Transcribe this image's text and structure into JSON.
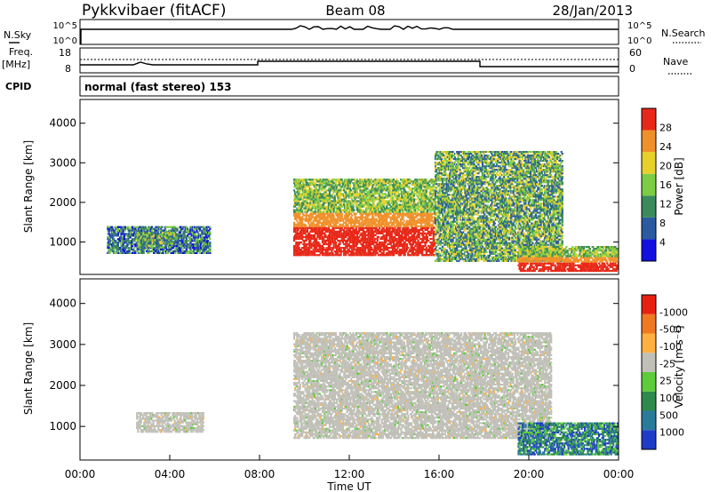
{
  "header": {
    "radar": "Pykkvibaer (fitACF)",
    "beam": "Beam 08",
    "date": "28/Jan/2013"
  },
  "ctrl": {
    "nsky_label": "N.Sky",
    "nsky_ticks": [
      "10^5",
      "10^0"
    ],
    "nsearch_label": "N.Search",
    "nsearch_ticks": [
      "10^5",
      "10^0"
    ],
    "freq_label": "Freq.",
    "freq_unit": "[MHz]",
    "freq_ticks": [
      "18",
      "8"
    ],
    "nave_label": "Nave",
    "nave_ticks": [
      "60",
      "0"
    ],
    "cpid_label": "CPID",
    "cpid_text": "normal (fast stereo) 153"
  },
  "chart_data": [
    {
      "type": "heatmap",
      "name": "power",
      "ylabel": "Slant Range [km]",
      "yticks": [
        1000,
        2000,
        3000,
        4000
      ],
      "ylim": [
        180,
        4600
      ],
      "colorbar_label": "Power [dB]",
      "colorbar_ticks": [
        "4",
        "8",
        "12",
        "16",
        "20",
        "24",
        "28"
      ],
      "colorbar_colors": [
        "#1010e0",
        "#2c5aa0",
        "#3a8a5c",
        "#7ccc44",
        "#e8d02a",
        "#f0902a",
        "#e82818"
      ],
      "regions": [
        {
          "t": [
            1.2,
            5.8
          ],
          "r": [
            700,
            1400
          ],
          "level": "low-mid"
        },
        {
          "t": [
            2.5,
            4.2
          ],
          "r": [
            850,
            1250
          ],
          "level": "mid"
        },
        {
          "t": [
            9.5,
            15.8
          ],
          "r": [
            650,
            2600
          ],
          "level": "high"
        },
        {
          "t": [
            15.8,
            21.5
          ],
          "r": [
            500,
            3300
          ],
          "level": "mid"
        },
        {
          "t": [
            19.5,
            24.0
          ],
          "r": [
            250,
            900
          ],
          "level": "high"
        }
      ]
    },
    {
      "type": "heatmap",
      "name": "velocity",
      "xlabel": "Time UT",
      "xticks": [
        "00:00",
        "04:00",
        "08:00",
        "12:00",
        "16:00",
        "20:00",
        "00:00"
      ],
      "ylabel": "Slant Range [km]",
      "yticks": [
        1000,
        2000,
        3000,
        4000
      ],
      "ylim": [
        180,
        4600
      ],
      "colorbar_label": "Velocity [m s⁻¹]",
      "colorbar_ticks": [
        "1000",
        "500",
        "100",
        "25",
        "-25",
        "-100",
        "-500",
        "-1000"
      ],
      "colorbar_colors": [
        "#1e3cc8",
        "#2a7a9a",
        "#2e8a4a",
        "#5ccc3a",
        "#c0c0b8",
        "#ffb040",
        "#f07820",
        "#e82010"
      ],
      "regions": [
        {
          "t": [
            2.5,
            5.5
          ],
          "r": [
            850,
            1350
          ],
          "level": "grey"
        },
        {
          "t": [
            9.5,
            21.0
          ],
          "r": [
            700,
            3300
          ],
          "level": "grey"
        },
        {
          "t": [
            19.5,
            24.0
          ],
          "r": [
            300,
            1100
          ],
          "level": "positive"
        }
      ]
    }
  ]
}
